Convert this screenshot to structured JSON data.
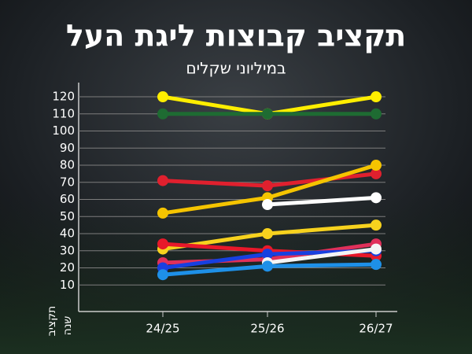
{
  "chart_data": {
    "type": "line",
    "title": "תקציב קבוצות ליגת העל",
    "subtitle": "במיליוני שקלים",
    "y_label": "תקציב",
    "x_label": "שנה",
    "categories": [
      "24/25",
      "25/26",
      "26/27"
    ],
    "ylim": [
      0,
      126
    ],
    "yticks": [
      10,
      20,
      30,
      40,
      50,
      60,
      70,
      80,
      90,
      100,
      110,
      120
    ],
    "grid": true,
    "series": [
      {
        "color": "#ffee00",
        "values": [
          120,
          110,
          120
        ]
      },
      {
        "color": "#1e6b32",
        "values": [
          110,
          110,
          110
        ]
      },
      {
        "color": "#e0202e",
        "values": [
          71,
          68,
          75
        ]
      },
      {
        "color": "#f5c400",
        "values": [
          52,
          61,
          80
        ]
      },
      {
        "color": "#ffffff",
        "values": [
          null,
          57,
          61
        ]
      },
      {
        "color": "#f7d21e",
        "values": [
          31,
          40,
          45
        ]
      },
      {
        "color": "#e8182a",
        "values": [
          34,
          30,
          27
        ]
      },
      {
        "color": "#e0305a",
        "values": [
          23,
          25,
          34
        ]
      },
      {
        "color": "#1740e0",
        "values": [
          20,
          28,
          30
        ]
      },
      {
        "color": "#f4f4f4",
        "values": [
          null,
          23,
          31
        ]
      },
      {
        "color": "#1e90e8",
        "values": [
          16,
          21,
          22
        ]
      }
    ]
  }
}
